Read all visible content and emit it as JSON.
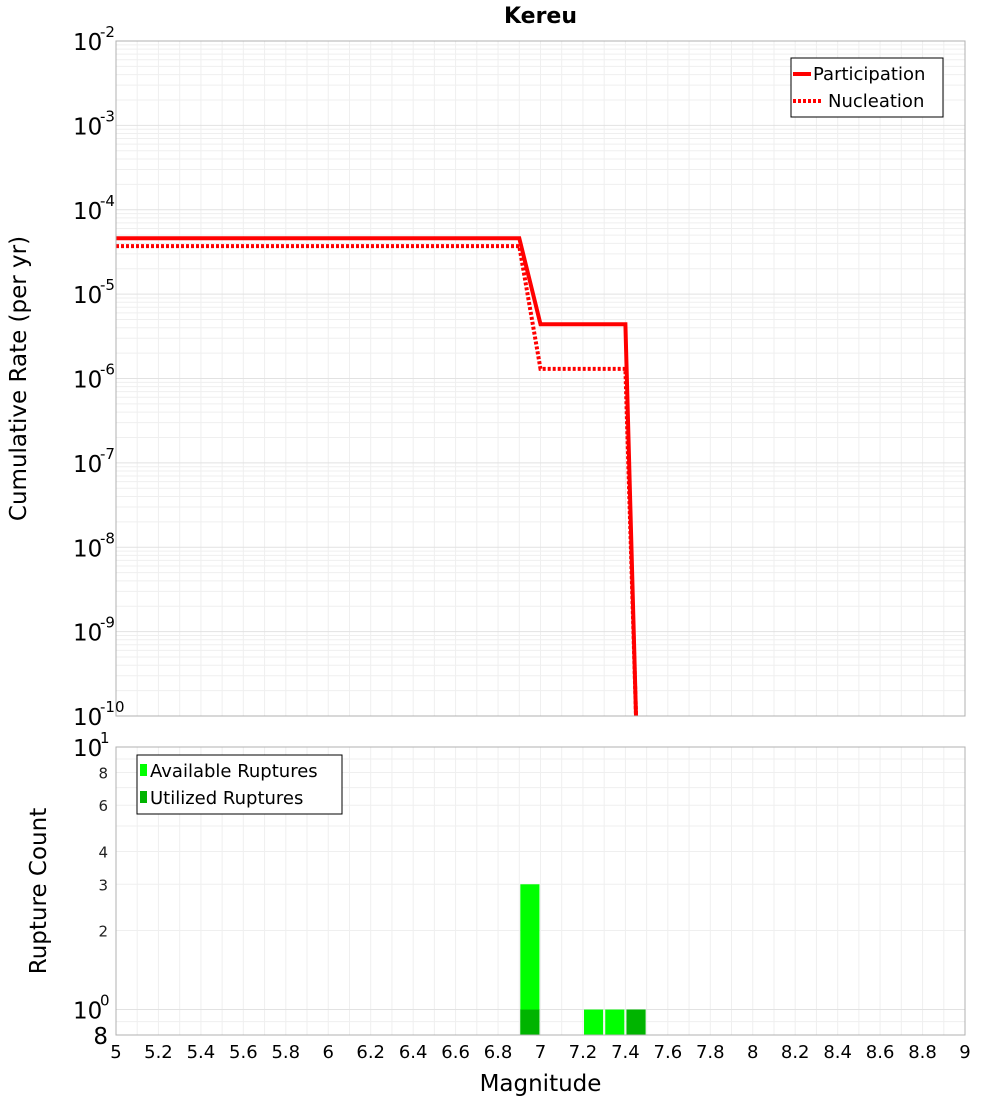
{
  "chart_data": [
    {
      "type": "line",
      "title": "Kereu",
      "ylabel": "Cumulative Rate (per yr)",
      "xlabel": "",
      "yscale": "log",
      "ylim": [
        1e-10,
        0.01
      ],
      "xlim": [
        5,
        9
      ],
      "ytick_bases": [
        "10",
        "10",
        "10",
        "10",
        "10",
        "10",
        "10",
        "10",
        "10"
      ],
      "ytick_exponents": [
        "-10",
        "-9",
        "-8",
        "-7",
        "-6",
        "-5",
        "-4",
        "-3",
        "-2"
      ],
      "ytick_values": [
        1e-10,
        1e-09,
        1e-08,
        1e-07,
        1e-06,
        1e-05,
        0.0001,
        0.001,
        0.01
      ],
      "legend_position": "top-right",
      "grid": true,
      "series": [
        {
          "name": "Participation",
          "color": "#ff0000",
          "style": "solid",
          "x": [
            5.0,
            6.9,
            7.0,
            7.4,
            7.45
          ],
          "y": [
            4.6e-05,
            4.6e-05,
            4.4e-06,
            4.4e-06,
            1e-10
          ]
        },
        {
          "name": "Nucleation",
          "color": "#ff0000",
          "style": "dotted",
          "x": [
            5.0,
            6.9,
            7.0,
            7.4,
            7.45
          ],
          "y": [
            3.7e-05,
            3.7e-05,
            1.3e-06,
            1.3e-06,
            1e-10
          ]
        }
      ]
    },
    {
      "type": "bar",
      "title": "",
      "ylabel": "Rupture Count",
      "xlabel": "Magnitude",
      "yscale": "log",
      "ylim": [
        0.8,
        10
      ],
      "xlim": [
        5,
        9
      ],
      "xtick_labels": [
        "5",
        "5.2",
        "5.4",
        "5.6",
        "5.8",
        "6",
        "6.2",
        "6.4",
        "6.6",
        "6.8",
        "7",
        "7.2",
        "7.4",
        "7.6",
        "7.8",
        "8",
        "8.2",
        "8.4",
        "8.6",
        "8.8",
        "9"
      ],
      "xtick_values": [
        5,
        5.2,
        5.4,
        5.6,
        5.8,
        6,
        6.2,
        6.4,
        6.6,
        6.8,
        7,
        7.2,
        7.4,
        7.6,
        7.8,
        8,
        8.2,
        8.4,
        8.6,
        8.8,
        9
      ],
      "major_ticks": [
        {
          "value": 0.8,
          "base": "8",
          "exp": ""
        },
        {
          "value": 1,
          "base": "10",
          "exp": "0"
        },
        {
          "value": 10,
          "base": "10",
          "exp": "1"
        }
      ],
      "minor_ticks": [
        {
          "value": 2,
          "label": "2"
        },
        {
          "value": 3,
          "label": "3"
        },
        {
          "value": 4,
          "label": "4"
        },
        {
          "value": 6,
          "label": "6"
        },
        {
          "value": 8,
          "label": "8"
        }
      ],
      "legend_position": "top-left",
      "grid": true,
      "bar_width": 0.09,
      "series": [
        {
          "name": "Available Ruptures",
          "color": "#00ff00",
          "x": [
            6.95,
            7.25,
            7.35,
            7.45
          ],
          "values": [
            3,
            1,
            1,
            1
          ]
        },
        {
          "name": "Utilized Ruptures",
          "color": "#00b400",
          "x": [
            6.95,
            7.45
          ],
          "values": [
            1,
            1
          ]
        }
      ]
    }
  ]
}
